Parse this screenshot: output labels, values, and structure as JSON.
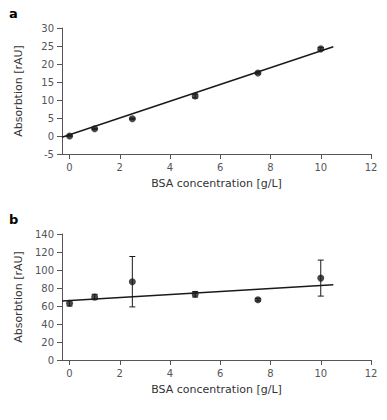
{
  "chart_data": [
    {
      "type": "scatter",
      "title": "a",
      "xlabel": "BSA concentration [g/L]",
      "ylabel": "Absorbtion [rAU]",
      "xlim": [
        -0.3,
        12
      ],
      "ylim": [
        -5,
        30
      ],
      "xticks": [
        0,
        2,
        4,
        6,
        8,
        10,
        12
      ],
      "yticks": [
        -5,
        0,
        5,
        10,
        15,
        20,
        25,
        30
      ],
      "grid": false,
      "series": [
        {
          "type": "line",
          "x": [
            -0.3,
            10.5
          ],
          "values": [
            -0.35,
            24.8
          ],
          "color": "#1a1a1a"
        },
        {
          "type": "scatter",
          "x": [
            0,
            1,
            2.5,
            5,
            7.5,
            10
          ],
          "values": [
            0,
            2.0,
            4.8,
            11.1,
            17.5,
            24.2
          ],
          "yerr": [
            0.05,
            0.15,
            0.15,
            0.55,
            0.25,
            0.35
          ],
          "color": "#1a1a1a",
          "marker": "circle"
        }
      ]
    },
    {
      "type": "scatter",
      "title": "b",
      "xlabel": "BSA concentration [g/L]",
      "ylabel": "Absorbtion [rAU]",
      "xlim": [
        -0.3,
        12
      ],
      "ylim": [
        0,
        140
      ],
      "xticks": [
        0,
        2,
        4,
        6,
        8,
        10,
        12
      ],
      "yticks": [
        0,
        20,
        40,
        60,
        80,
        100,
        120,
        140
      ],
      "grid": false,
      "series": [
        {
          "type": "line",
          "x": [
            -0.3,
            10.5
          ],
          "values": [
            65.5,
            83.5
          ],
          "color": "#1a1a1a"
        },
        {
          "type": "scatter",
          "x": [
            0,
            1,
            2.5,
            5,
            7.5,
            10
          ],
          "values": [
            63,
            70,
            87,
            73,
            67,
            91
          ],
          "yerr": [
            3,
            3,
            28,
            3,
            1.5,
            20
          ],
          "color": "#1a1a1a",
          "marker": "circle"
        }
      ]
    }
  ]
}
